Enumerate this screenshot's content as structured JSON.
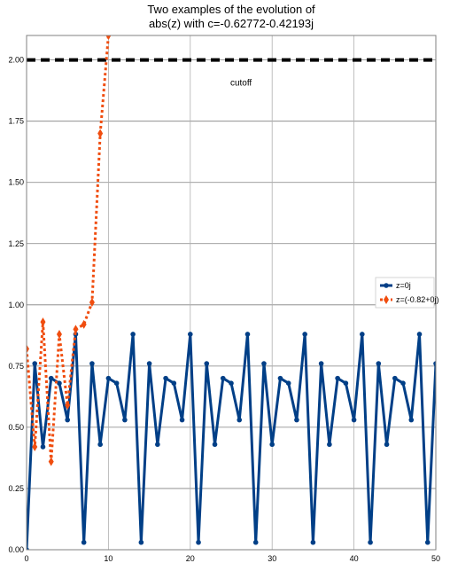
{
  "chart_data": {
    "type": "line",
    "title_lines": [
      "Two examples of the evolution of",
      "abs(z) with c=-0.62772-0.42193j"
    ],
    "xlabel": "",
    "ylabel": "",
    "xlim": [
      0,
      50
    ],
    "ylim": [
      0,
      2.1
    ],
    "x_ticks": [
      0,
      10,
      20,
      30,
      40,
      50
    ],
    "y_ticks": [
      0.0,
      0.25,
      0.5,
      0.75,
      1.0,
      1.25,
      1.5,
      1.75,
      2.0
    ],
    "x_tick_labels": [
      "0",
      "10",
      "20",
      "30",
      "40",
      "50"
    ],
    "y_tick_labels": [
      "0.00",
      "0.25",
      "0.50",
      "0.75",
      "1.00",
      "1.25",
      "1.50",
      "1.75",
      "2.00"
    ],
    "grid": true,
    "legend_position": "right",
    "cutoff": {
      "y": 2.0,
      "label": "cutoff",
      "label_x": 26.2,
      "label_y": 1.91,
      "color": "#000000"
    },
    "series": [
      {
        "name": "z=0j",
        "color": "#003f87",
        "style": "solid",
        "x": [
          0,
          1,
          2,
          3,
          4,
          5,
          6,
          7,
          8,
          9,
          10,
          11,
          12,
          13,
          14,
          15,
          16,
          17,
          18,
          19,
          20,
          21,
          22,
          23,
          24,
          25,
          26,
          27,
          28,
          29,
          30,
          31,
          32,
          33,
          34,
          35,
          36,
          37,
          38,
          39,
          40,
          41,
          42,
          43,
          44,
          45,
          46,
          47,
          48,
          49,
          50
        ],
        "y": [
          0.0,
          0.76,
          0.42,
          0.7,
          0.68,
          0.53,
          0.88,
          0.03,
          0.76,
          0.43,
          0.7,
          0.68,
          0.53,
          0.88,
          0.03,
          0.76,
          0.43,
          0.7,
          0.68,
          0.53,
          0.88,
          0.03,
          0.76,
          0.43,
          0.7,
          0.68,
          0.53,
          0.88,
          0.03,
          0.76,
          0.43,
          0.7,
          0.68,
          0.53,
          0.88,
          0.03,
          0.76,
          0.43,
          0.7,
          0.68,
          0.53,
          0.88,
          0.03,
          0.76,
          0.43,
          0.7,
          0.68,
          0.53,
          0.88,
          0.03,
          0.76
        ]
      },
      {
        "name": "z=(-0.82+0j)",
        "color": "#f04d0f",
        "style": "dotted",
        "x": [
          0,
          1,
          2,
          3,
          4,
          5,
          6,
          7,
          8,
          9,
          10,
          11
        ],
        "y": [
          0.82,
          0.42,
          0.93,
          0.36,
          0.88,
          0.59,
          0.9,
          0.92,
          1.01,
          1.7,
          2.1,
          2.3
        ]
      }
    ]
  }
}
